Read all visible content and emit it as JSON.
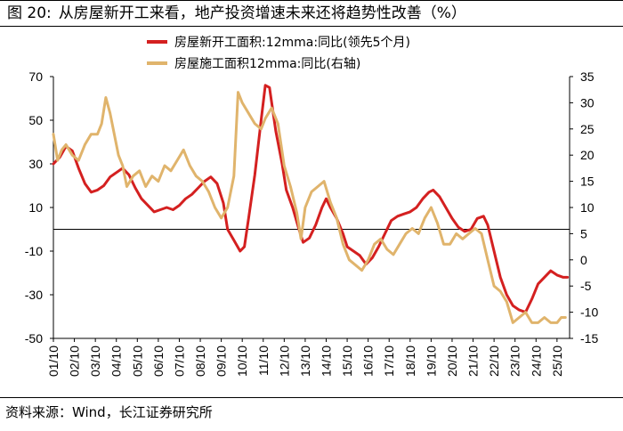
{
  "figure": {
    "number": "图 20:",
    "title": "从房屋新开工来看，地产投资增速未来还将趋势性改善（%）",
    "source": "资料来源：Wind，长江证券研究所"
  },
  "chart_data": {
    "type": "line",
    "x": [
      "01/10",
      "02/10",
      "03/10",
      "04/10",
      "05/10",
      "06/10",
      "07/10",
      "08/10",
      "09/10",
      "10/10",
      "11/10",
      "12/10",
      "13/10",
      "14/10",
      "15/10",
      "16/10",
      "17/10",
      "18/10",
      "19/10",
      "20/10",
      "21/10",
      "22/10",
      "23/10",
      "24/10",
      "25/10"
    ],
    "xlim": [
      2001.0,
      2025.6
    ],
    "y_left": {
      "min": -50,
      "max": 70,
      "ticks": [
        -50,
        -30,
        -10,
        10,
        30,
        50,
        70
      ]
    },
    "y_right": {
      "min": -15,
      "max": 35,
      "ticks": [
        -15,
        -10,
        -5,
        0,
        5,
        10,
        15,
        20,
        25,
        30,
        35
      ]
    },
    "reference_line_left_value": 0,
    "series": [
      {
        "name": "房屋新开工面积:12mma:同比(领先5个月)",
        "axis": "left",
        "color": "#d42020",
        "points": [
          [
            2001.0,
            30
          ],
          [
            2001.3,
            33
          ],
          [
            2001.6,
            38
          ],
          [
            2001.9,
            36
          ],
          [
            2002.2,
            28
          ],
          [
            2002.5,
            21
          ],
          [
            2002.8,
            17
          ],
          [
            2003.1,
            18
          ],
          [
            2003.4,
            20
          ],
          [
            2003.7,
            24
          ],
          [
            2004.0,
            26
          ],
          [
            2004.3,
            28
          ],
          [
            2004.6,
            25
          ],
          [
            2004.9,
            19
          ],
          [
            2005.2,
            14
          ],
          [
            2005.5,
            11
          ],
          [
            2005.8,
            8
          ],
          [
            2006.1,
            9
          ],
          [
            2006.4,
            10
          ],
          [
            2006.7,
            9
          ],
          [
            2007.0,
            11
          ],
          [
            2007.3,
            14
          ],
          [
            2007.6,
            16
          ],
          [
            2007.9,
            19
          ],
          [
            2008.2,
            22
          ],
          [
            2008.5,
            24
          ],
          [
            2008.8,
            21
          ],
          [
            2009.1,
            12
          ],
          [
            2009.3,
            0
          ],
          [
            2009.6,
            -5
          ],
          [
            2009.9,
            -10
          ],
          [
            2010.1,
            -8
          ],
          [
            2010.3,
            5
          ],
          [
            2010.6,
            25
          ],
          [
            2010.9,
            50
          ],
          [
            2011.1,
            66
          ],
          [
            2011.3,
            65
          ],
          [
            2011.6,
            45
          ],
          [
            2011.9,
            30
          ],
          [
            2012.1,
            18
          ],
          [
            2012.4,
            10
          ],
          [
            2012.7,
            0
          ],
          [
            2012.9,
            -6
          ],
          [
            2013.2,
            -4
          ],
          [
            2013.5,
            2
          ],
          [
            2013.8,
            10
          ],
          [
            2014.0,
            14
          ],
          [
            2014.2,
            10
          ],
          [
            2014.5,
            5
          ],
          [
            2014.8,
            -2
          ],
          [
            2015.0,
            -8
          ],
          [
            2015.3,
            -10
          ],
          [
            2015.6,
            -12
          ],
          [
            2015.9,
            -16
          ],
          [
            2016.2,
            -13
          ],
          [
            2016.5,
            -8
          ],
          [
            2016.8,
            -2
          ],
          [
            2017.1,
            4
          ],
          [
            2017.4,
            6
          ],
          [
            2017.7,
            7
          ],
          [
            2018.0,
            8
          ],
          [
            2018.3,
            10
          ],
          [
            2018.6,
            14
          ],
          [
            2018.9,
            17
          ],
          [
            2019.1,
            18
          ],
          [
            2019.4,
            15
          ],
          [
            2019.7,
            10
          ],
          [
            2020.0,
            5
          ],
          [
            2020.3,
            1
          ],
          [
            2020.6,
            -1
          ],
          [
            2020.9,
            0
          ],
          [
            2021.2,
            5
          ],
          [
            2021.5,
            6
          ],
          [
            2021.7,
            2
          ],
          [
            2022.0,
            -10
          ],
          [
            2022.3,
            -22
          ],
          [
            2022.6,
            -30
          ],
          [
            2022.9,
            -35
          ],
          [
            2023.2,
            -37
          ],
          [
            2023.5,
            -38
          ],
          [
            2023.8,
            -32
          ],
          [
            2024.1,
            -25
          ],
          [
            2024.4,
            -22
          ],
          [
            2024.7,
            -19
          ],
          [
            2025.0,
            -21
          ],
          [
            2025.3,
            -22
          ],
          [
            2025.5,
            -22
          ]
        ]
      },
      {
        "name": "房屋施工面积12mma:同比(右轴)",
        "axis": "right",
        "color": "#e0b46c",
        "points": [
          [
            2001.0,
            24
          ],
          [
            2001.2,
            19
          ],
          [
            2001.4,
            21
          ],
          [
            2001.6,
            22
          ],
          [
            2001.9,
            20
          ],
          [
            2002.2,
            19
          ],
          [
            2002.5,
            22
          ],
          [
            2002.8,
            24
          ],
          [
            2003.1,
            24
          ],
          [
            2003.3,
            26
          ],
          [
            2003.5,
            31
          ],
          [
            2003.7,
            28
          ],
          [
            2003.9,
            24
          ],
          [
            2004.1,
            20
          ],
          [
            2004.3,
            18
          ],
          [
            2004.5,
            14
          ],
          [
            2004.8,
            16
          ],
          [
            2005.1,
            17
          ],
          [
            2005.4,
            14
          ],
          [
            2005.7,
            16
          ],
          [
            2006.0,
            15
          ],
          [
            2006.3,
            18
          ],
          [
            2006.6,
            17
          ],
          [
            2006.9,
            19
          ],
          [
            2007.2,
            21
          ],
          [
            2007.5,
            18
          ],
          [
            2007.8,
            16
          ],
          [
            2008.1,
            15
          ],
          [
            2008.4,
            13
          ],
          [
            2008.7,
            10
          ],
          [
            2009.0,
            8
          ],
          [
            2009.3,
            10
          ],
          [
            2009.6,
            16
          ],
          [
            2009.8,
            32
          ],
          [
            2010.0,
            30
          ],
          [
            2010.3,
            28
          ],
          [
            2010.6,
            26
          ],
          [
            2010.9,
            25
          ],
          [
            2011.1,
            27
          ],
          [
            2011.4,
            29
          ],
          [
            2011.7,
            26
          ],
          [
            2012.0,
            18
          ],
          [
            2012.3,
            14
          ],
          [
            2012.6,
            9
          ],
          [
            2012.8,
            4
          ],
          [
            2013.0,
            10
          ],
          [
            2013.3,
            13
          ],
          [
            2013.6,
            14
          ],
          [
            2013.9,
            15
          ],
          [
            2014.2,
            11
          ],
          [
            2014.5,
            8
          ],
          [
            2014.8,
            3
          ],
          [
            2015.1,
            0
          ],
          [
            2015.4,
            -1
          ],
          [
            2015.7,
            -2
          ],
          [
            2016.0,
            0
          ],
          [
            2016.3,
            3
          ],
          [
            2016.6,
            4
          ],
          [
            2016.9,
            2
          ],
          [
            2017.2,
            1
          ],
          [
            2017.5,
            3
          ],
          [
            2017.8,
            5
          ],
          [
            2018.1,
            6
          ],
          [
            2018.4,
            5
          ],
          [
            2018.7,
            8
          ],
          [
            2019.0,
            10
          ],
          [
            2019.3,
            7
          ],
          [
            2019.6,
            3
          ],
          [
            2019.9,
            3
          ],
          [
            2020.2,
            5
          ],
          [
            2020.5,
            4
          ],
          [
            2020.8,
            5
          ],
          [
            2021.1,
            6
          ],
          [
            2021.4,
            5
          ],
          [
            2021.7,
            0
          ],
          [
            2022.0,
            -5
          ],
          [
            2022.3,
            -6
          ],
          [
            2022.6,
            -8
          ],
          [
            2022.9,
            -12
          ],
          [
            2023.2,
            -11
          ],
          [
            2023.5,
            -10
          ],
          [
            2023.8,
            -12
          ],
          [
            2024.1,
            -12
          ],
          [
            2024.4,
            -11
          ],
          [
            2024.7,
            -12
          ],
          [
            2025.0,
            -12
          ],
          [
            2025.2,
            -11
          ],
          [
            2025.4,
            -11
          ]
        ]
      }
    ]
  }
}
